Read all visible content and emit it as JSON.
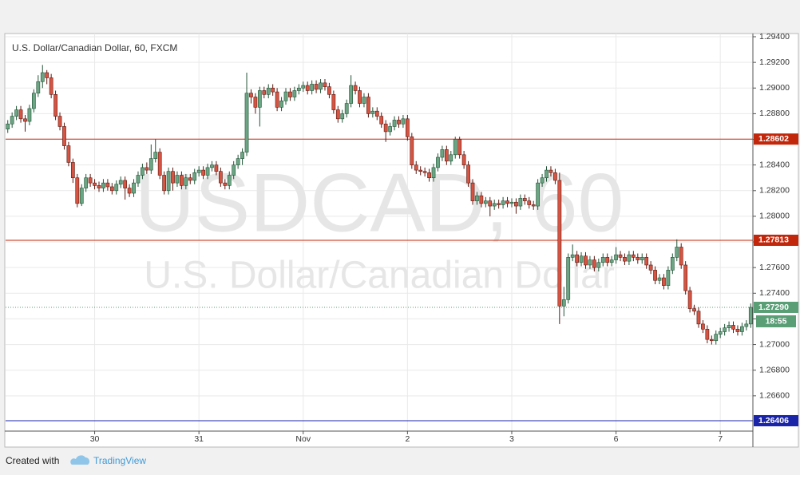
{
  "chart_data": {
    "type": "candlestick",
    "title": "U.S. Dollar/Canadian Dollar, 60, FXCM",
    "watermark": "USDCAD, 60",
    "watermark_subtitle": "U.S. Dollar/Canadian Dollar",
    "categories": [
      null,
      null,
      null,
      null,
      null,
      null,
      null,
      null,
      null,
      null,
      null,
      null,
      null,
      null,
      null,
      null,
      null,
      null,
      null,
      null,
      "30",
      null,
      null,
      null,
      null,
      null,
      null,
      null,
      null,
      null,
      null,
      null,
      null,
      null,
      null,
      null,
      null,
      null,
      null,
      null,
      null,
      null,
      null,
      null,
      "31",
      null,
      null,
      null,
      null,
      null,
      null,
      null,
      null,
      null,
      null,
      null,
      null,
      null,
      null,
      null,
      null,
      null,
      null,
      null,
      null,
      null,
      null,
      null,
      "Nov",
      null,
      null,
      null,
      null,
      null,
      null,
      null,
      null,
      null,
      null,
      null,
      null,
      null,
      null,
      null,
      null,
      null,
      null,
      null,
      null,
      null,
      null,
      null,
      "2",
      null,
      null,
      null,
      null,
      null,
      null,
      null,
      null,
      null,
      null,
      null,
      null,
      null,
      null,
      null,
      null,
      null,
      null,
      null,
      null,
      null,
      null,
      null,
      "3",
      null,
      null,
      null,
      null,
      null,
      null,
      null,
      null,
      null,
      null,
      null,
      null,
      null,
      null,
      null,
      null,
      null,
      null,
      null,
      null,
      null,
      null,
      null,
      "6",
      null,
      null,
      null,
      null,
      null,
      null,
      null,
      null,
      null,
      null,
      null,
      null,
      null,
      null,
      null,
      null,
      null,
      null,
      null,
      null,
      null,
      null,
      null,
      "7",
      null,
      null,
      null,
      null,
      null,
      null,
      null
    ],
    "open": [
      1.2868,
      1.2872,
      1.2878,
      1.2883,
      1.2876,
      1.2874,
      1.2884,
      1.2896,
      1.2905,
      1.2912,
      1.2908,
      1.2895,
      1.2878,
      1.287,
      1.2855,
      1.2842,
      1.283,
      1.281,
      1.2822,
      1.283,
      1.2826,
      1.2824,
      1.2822,
      1.2826,
      1.2823,
      1.282,
      1.2825,
      1.2828,
      1.2822,
      1.2818,
      1.2826,
      1.2832,
      1.2838,
      1.2836,
      1.2845,
      1.285,
      1.2832,
      1.282,
      1.2835,
      1.2826,
      1.2832,
      1.2824,
      1.283,
      1.2828,
      1.2834,
      1.2836,
      1.2832,
      1.2838,
      1.284,
      1.2835,
      1.2826,
      1.2824,
      1.2832,
      1.284,
      1.2845,
      1.285,
      1.2896,
      1.2893,
      1.2885,
      1.2898,
      1.2895,
      1.29,
      1.2897,
      1.2885,
      1.289,
      1.2897,
      1.2893,
      1.2898,
      1.29,
      1.2902,
      1.2898,
      1.2903,
      1.2899,
      1.2904,
      1.2901,
      1.2895,
      1.2883,
      1.2876,
      1.288,
      1.2888,
      1.2902,
      1.2898,
      1.2888,
      1.2893,
      1.288,
      1.2882,
      1.2878,
      1.2872,
      1.2866,
      1.287,
      1.2875,
      1.2872,
      1.2876,
      1.2862,
      1.284,
      1.2836,
      1.2835,
      1.2834,
      1.283,
      1.2838,
      1.2846,
      1.2852,
      1.2843,
      1.2848,
      1.286,
      1.2848,
      1.284,
      1.2826,
      1.2812,
      1.2816,
      1.281,
      1.2812,
      1.2808,
      1.281,
      1.2809,
      1.2812,
      1.281,
      1.2811,
      1.2808,
      1.2814,
      1.2812,
      1.2809,
      1.2808,
      1.2826,
      1.283,
      1.2836,
      1.2834,
      1.2828,
      1.273,
      1.2735,
      1.2768,
      1.277,
      1.2764,
      1.2769,
      1.2762,
      1.2766,
      1.276,
      1.2764,
      1.2768,
      1.2764,
      1.2766,
      1.277,
      1.2768,
      1.2765,
      1.277,
      1.2768,
      1.2766,
      1.2768,
      1.2762,
      1.2758,
      1.275,
      1.2752,
      1.2746,
      1.2758,
      1.2768,
      1.2776,
      1.2762,
      1.2742,
      1.2728,
      1.2726,
      1.2716,
      1.2712,
      1.2704,
      1.2703,
      1.2708,
      1.271,
      1.2713,
      1.2715,
      1.2712,
      1.271,
      1.2714,
      1.2716
    ],
    "high": [
      1.2875,
      1.2881,
      1.2886,
      1.2886,
      1.2879,
      1.2887,
      1.2899,
      1.291,
      1.2918,
      1.2914,
      1.2911,
      1.2898,
      1.2881,
      1.2873,
      1.2858,
      1.2845,
      1.2833,
      1.2825,
      1.2833,
      1.2833,
      1.2829,
      1.2827,
      1.2829,
      1.2829,
      1.2826,
      1.2828,
      1.2831,
      1.2831,
      1.2825,
      1.2829,
      1.2835,
      1.2841,
      1.2842,
      1.2856,
      1.286,
      1.2853,
      1.2835,
      1.2838,
      1.2838,
      1.2835,
      1.2835,
      1.2833,
      1.2833,
      1.2837,
      1.2839,
      1.2839,
      1.2841,
      1.2843,
      1.2843,
      1.2838,
      1.2829,
      1.2835,
      1.2843,
      1.2848,
      1.2853,
      1.2912,
      1.2899,
      1.2896,
      1.2901,
      1.2901,
      1.2903,
      1.2903,
      1.29,
      1.2893,
      1.29,
      1.29,
      1.2901,
      1.2903,
      1.2905,
      1.2905,
      1.2906,
      1.2906,
      1.2907,
      1.2907,
      1.2904,
      1.2898,
      1.2886,
      1.2883,
      1.2891,
      1.291,
      1.2905,
      1.2901,
      1.2896,
      1.2896,
      1.2885,
      1.2885,
      1.2881,
      1.2875,
      1.2873,
      1.2878,
      1.2878,
      1.2879,
      1.2879,
      1.2865,
      1.2843,
      1.2839,
      1.2838,
      1.2837,
      1.2841,
      1.2849,
      1.2855,
      1.2855,
      1.2851,
      1.2862,
      1.2862,
      1.2851,
      1.2843,
      1.2829,
      1.2819,
      1.2819,
      1.2815,
      1.2815,
      1.2813,
      1.2813,
      1.2815,
      1.2815,
      1.2814,
      1.2814,
      1.2817,
      1.2817,
      1.2815,
      1.2812,
      1.2829,
      1.2833,
      1.2839,
      1.2839,
      1.2837,
      1.2834,
      1.2745,
      1.2771,
      1.2778,
      1.2773,
      1.2772,
      1.2772,
      1.2769,
      1.2769,
      1.2767,
      1.2771,
      1.2771,
      1.2769,
      1.2776,
      1.2773,
      1.2771,
      1.2773,
      1.2773,
      1.2771,
      1.2771,
      1.2771,
      1.2765,
      1.2761,
      1.2755,
      1.2755,
      1.2761,
      1.2771,
      1.2782,
      1.2779,
      1.2765,
      1.2745,
      1.2731,
      1.2729,
      1.2719,
      1.2715,
      1.2707,
      1.2711,
      1.2713,
      1.2716,
      1.2718,
      1.2718,
      1.2715,
      1.2717,
      1.2719,
      1.2732
    ],
    "low": [
      1.2865,
      1.2869,
      1.2875,
      1.2873,
      1.2866,
      1.2871,
      1.2881,
      1.2893,
      1.29,
      1.2903,
      1.2892,
      1.2875,
      1.2867,
      1.2852,
      1.2839,
      1.2826,
      1.2807,
      1.2808,
      1.2819,
      1.2823,
      1.2821,
      1.2819,
      1.2819,
      1.282,
      1.2817,
      1.2817,
      1.2822,
      1.2813,
      1.2815,
      1.2815,
      1.2823,
      1.2829,
      1.2833,
      1.2833,
      1.2842,
      1.2829,
      1.2817,
      1.2817,
      1.282,
      1.2823,
      1.2821,
      1.2821,
      1.2825,
      1.2825,
      1.2831,
      1.2829,
      1.2829,
      1.2835,
      1.2832,
      1.2823,
      1.2821,
      1.2821,
      1.2829,
      1.2837,
      1.284,
      1.2847,
      1.2888,
      1.288,
      1.287,
      1.2892,
      1.2892,
      1.2894,
      1.2882,
      1.2882,
      1.2887,
      1.289,
      1.289,
      1.2895,
      1.2897,
      1.2895,
      1.2895,
      1.2896,
      1.2896,
      1.2898,
      1.2892,
      1.288,
      1.2873,
      1.2873,
      1.2877,
      1.2885,
      1.2895,
      1.2885,
      1.2885,
      1.2877,
      1.2877,
      1.2875,
      1.2869,
      1.2858,
      1.2863,
      1.2867,
      1.2869,
      1.2869,
      1.2859,
      1.2837,
      1.2833,
      1.2832,
      1.2831,
      1.2827,
      1.2827,
      1.2835,
      1.2843,
      1.284,
      1.284,
      1.2845,
      1.2845,
      1.2837,
      1.2823,
      1.2809,
      1.2809,
      1.2807,
      1.2807,
      1.28,
      1.2805,
      1.2806,
      1.2806,
      1.2807,
      1.2807,
      1.2802,
      1.2805,
      1.2809,
      1.2806,
      1.2805,
      1.2805,
      1.2823,
      1.2827,
      1.2831,
      1.2825,
      1.2716,
      1.2722,
      1.2732,
      1.2765,
      1.2761,
      1.2761,
      1.2759,
      1.2759,
      1.2757,
      1.2757,
      1.2761,
      1.2761,
      1.2761,
      1.2763,
      1.2765,
      1.2762,
      1.2762,
      1.2765,
      1.2763,
      1.2763,
      1.2759,
      1.2755,
      1.2747,
      1.2747,
      1.2743,
      1.2743,
      1.2755,
      1.2765,
      1.2759,
      1.2739,
      1.2725,
      1.2723,
      1.2713,
      1.2709,
      1.2701,
      1.27,
      1.27,
      1.2705,
      1.2707,
      1.271,
      1.2709,
      1.2707,
      1.2707,
      1.2711,
      1.2713
    ],
    "close": [
      1.2872,
      1.2878,
      1.2883,
      1.2876,
      1.2874,
      1.2884,
      1.2896,
      1.2905,
      1.2912,
      1.2908,
      1.2895,
      1.2878,
      1.287,
      1.2855,
      1.2842,
      1.283,
      1.281,
      1.2822,
      1.283,
      1.2826,
      1.2824,
      1.2822,
      1.2826,
      1.2823,
      1.282,
      1.2825,
      1.2828,
      1.2822,
      1.2818,
      1.2826,
      1.2832,
      1.2838,
      1.2836,
      1.2845,
      1.285,
      1.2832,
      1.282,
      1.2835,
      1.2826,
      1.2832,
      1.2824,
      1.283,
      1.2828,
      1.2834,
      1.2836,
      1.2832,
      1.2838,
      1.284,
      1.2835,
      1.2826,
      1.2824,
      1.2832,
      1.284,
      1.2845,
      1.285,
      1.2896,
      1.2893,
      1.2885,
      1.2898,
      1.2895,
      1.29,
      1.2897,
      1.2885,
      1.289,
      1.2897,
      1.2893,
      1.2898,
      1.29,
      1.2902,
      1.2898,
      1.2903,
      1.2899,
      1.2904,
      1.2901,
      1.2895,
      1.2883,
      1.2876,
      1.288,
      1.2888,
      1.2902,
      1.2898,
      1.2888,
      1.2893,
      1.288,
      1.2882,
      1.2878,
      1.2872,
      1.2866,
      1.287,
      1.2875,
      1.2872,
      1.2876,
      1.2862,
      1.284,
      1.2836,
      1.2835,
      1.2834,
      1.283,
      1.2838,
      1.2846,
      1.2852,
      1.2843,
      1.2848,
      1.286,
      1.2848,
      1.284,
      1.2826,
      1.2812,
      1.2816,
      1.281,
      1.2812,
      1.2808,
      1.281,
      1.2809,
      1.2812,
      1.281,
      1.2811,
      1.2808,
      1.2814,
      1.2812,
      1.2809,
      1.2808,
      1.2826,
      1.283,
      1.2836,
      1.2834,
      1.2828,
      1.273,
      1.2735,
      1.2768,
      1.277,
      1.2764,
      1.2769,
      1.2762,
      1.2766,
      1.276,
      1.2764,
      1.2768,
      1.2764,
      1.2766,
      1.277,
      1.2768,
      1.2765,
      1.277,
      1.2768,
      1.2766,
      1.2768,
      1.2762,
      1.2758,
      1.275,
      1.2752,
      1.2746,
      1.2758,
      1.2768,
      1.2776,
      1.2762,
      1.2742,
      1.2728,
      1.2726,
      1.2716,
      1.2712,
      1.2704,
      1.2703,
      1.2708,
      1.271,
      1.2713,
      1.2715,
      1.2712,
      1.271,
      1.2714,
      1.2716,
      1.2729
    ],
    "up_color": "#6ba583",
    "down_color": "#d75442",
    "ylim": [
      1.26325,
      1.29425
    ],
    "yticks": [
      {
        "value": 1.294,
        "label": "1.29400"
      },
      {
        "value": 1.292,
        "label": "1.29200"
      },
      {
        "value": 1.29,
        "label": "1.29000"
      },
      {
        "value": 1.288,
        "label": "1.28800"
      },
      {
        "value": 1.286,
        "label": "1.28600"
      },
      {
        "value": 1.284,
        "label": "1.28400"
      },
      {
        "value": 1.282,
        "label": "1.28200"
      },
      {
        "value": 1.28,
        "label": "1.28000"
      },
      {
        "value": 1.278,
        "label": "1.27800"
      },
      {
        "value": 1.276,
        "label": "1.27600"
      },
      {
        "value": 1.274,
        "label": "1.27400"
      },
      {
        "value": 1.272,
        "label": "1.27200"
      },
      {
        "value": 1.27,
        "label": "1.27000"
      },
      {
        "value": 1.268,
        "label": "1.26800"
      },
      {
        "value": 1.266,
        "label": "1.26600"
      }
    ],
    "grid": true,
    "levels": [
      {
        "value": 1.28602,
        "color": "#c2270b"
      },
      {
        "value": 1.27813,
        "color": "#c2270b"
      },
      {
        "value": 1.26406,
        "color": "#1a24a8"
      }
    ],
    "last_price": {
      "value": 1.2729,
      "label": "1.27290",
      "color": "#5a9e76"
    },
    "countdown": "18:55",
    "footer": {
      "prefix": "Created with",
      "brand": "TradingView"
    }
  }
}
